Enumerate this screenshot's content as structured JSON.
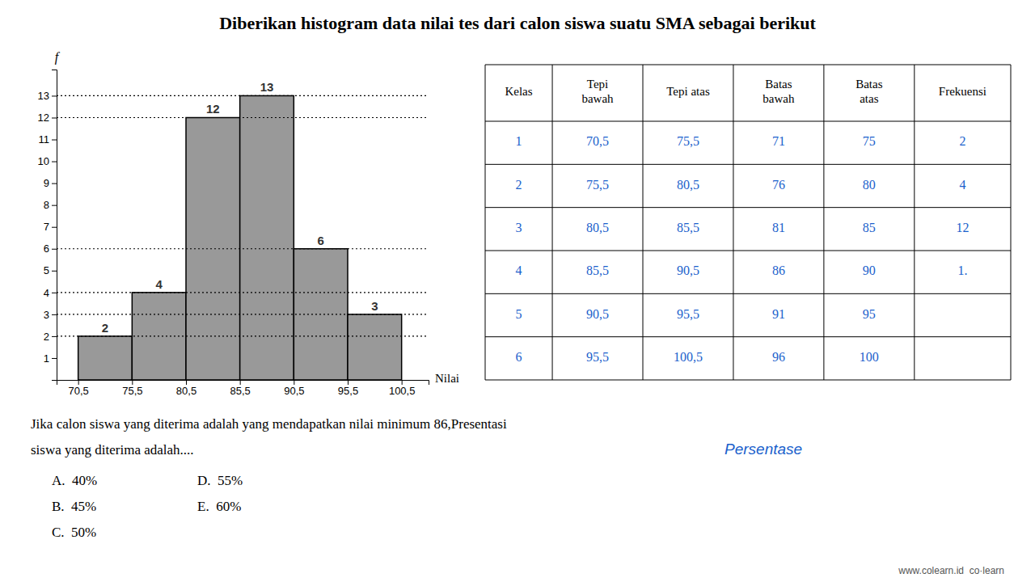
{
  "chart_data": [
    {
      "type": "histogram",
      "title": "Diberikan histogram data nilai tes dari calon siswa suatu SMA sebagai berikut",
      "x_label": "Nilai",
      "y_label": "f",
      "bins": [
        70.5,
        75.5,
        80.5,
        85.5,
        90.5,
        95.5,
        100.5
      ],
      "values": [
        2,
        4,
        12,
        13,
        6,
        3
      ],
      "color": "#999999",
      "xlim": [
        68.5,
        103
      ],
      "xticks": [
        {
          "value": 70.5,
          "label": "70,5"
        },
        {
          "value": 75.5,
          "label": "75,5"
        },
        {
          "value": 80.5,
          "label": "80,5"
        },
        {
          "value": 85.5,
          "label": "85,5"
        },
        {
          "value": 90.5,
          "label": "90,5"
        },
        {
          "value": 95.5,
          "label": "95,5"
        },
        {
          "value": 100.5,
          "label": "100,5"
        }
      ],
      "ylim": [
        0,
        14.2
      ],
      "yticks": [
        1,
        2,
        3,
        4,
        5,
        6,
        7,
        8,
        9,
        10,
        11,
        12,
        13
      ],
      "hlines": [
        2,
        3,
        4,
        6,
        12,
        13
      ],
      "data_labels": true,
      "grid": false,
      "question": [
        "Jika calon siswa yang diterima adalah yang mendapatkan nilai minimum 86,Presentasi",
        "siswa yang diterima adalah...."
      ],
      "annotations": [
        {
          "text": "Persentase",
          "color": "#1a5fcc"
        }
      ],
      "choices": [
        "A.  40%",
        "B.  45%",
        "C.  50%",
        "D.  55%",
        "E.  60%"
      ],
      "footer": "www.colearn.id  co·learn"
    },
    {
      "type": "table",
      "columns": [
        "Kelas",
        "Tepi\nbawah",
        "Tepi atas",
        "Batas\nbawah",
        "Batas\natas",
        "Frekuensi"
      ],
      "rows": [
        [
          "1",
          "70,5",
          "75,5",
          "71",
          "75",
          "2"
        ],
        [
          "2",
          "75,5",
          "80,5",
          "76",
          "80",
          "4"
        ],
        [
          "3",
          "80,5",
          "85,5",
          "81",
          "85",
          "12"
        ],
        [
          "4",
          "85,5",
          "90,5",
          "86",
          "90",
          "1."
        ],
        [
          "5",
          "90,5",
          "95,5",
          "91",
          "95",
          null
        ],
        [
          "6",
          "95,5",
          "100,5",
          "96",
          "100",
          null
        ]
      ],
      "color": "#1a5fcc"
    }
  ]
}
